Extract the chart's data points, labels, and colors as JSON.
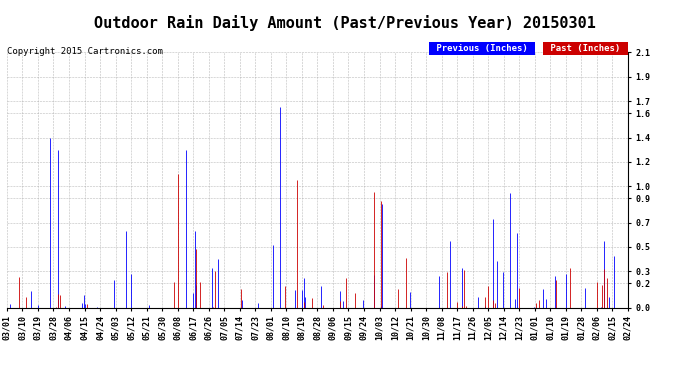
{
  "title": "Outdoor Rain Daily Amount (Past/Previous Year) 20150301",
  "copyright": "Copyright 2015 Cartronics.com",
  "legend_labels": [
    "Previous (Inches)",
    "Past (Inches)"
  ],
  "legend_colors": [
    "#0000FF",
    "#CC0000"
  ],
  "blue_color": "#0000FF",
  "red_color": "#CC0000",
  "yticks": [
    0.0,
    0.2,
    0.3,
    0.5,
    0.7,
    0.9,
    1.0,
    1.2,
    1.4,
    1.6,
    1.7,
    1.9,
    2.1
  ],
  "ymax": 2.1,
  "ymin": 0.0,
  "background_color": "#FFFFFF",
  "grid_color": "#AAAAAA",
  "x_labels": [
    "03/01",
    "03/10",
    "03/19",
    "03/28",
    "04/06",
    "04/15",
    "04/24",
    "05/03",
    "05/12",
    "05/21",
    "05/30",
    "06/08",
    "06/17",
    "06/26",
    "07/05",
    "07/14",
    "07/23",
    "08/01",
    "08/10",
    "08/19",
    "08/28",
    "09/06",
    "09/15",
    "09/24",
    "10/03",
    "10/12",
    "10/21",
    "10/30",
    "11/08",
    "11/17",
    "11/26",
    "12/05",
    "12/14",
    "12/23",
    "01/01",
    "01/10",
    "01/19",
    "01/28",
    "02/06",
    "02/15",
    "02/24"
  ],
  "title_fontsize": 11,
  "copyright_fontsize": 6.5,
  "tick_fontsize": 6,
  "n_days": 365,
  "blue_seed": 101,
  "red_seed": 202
}
